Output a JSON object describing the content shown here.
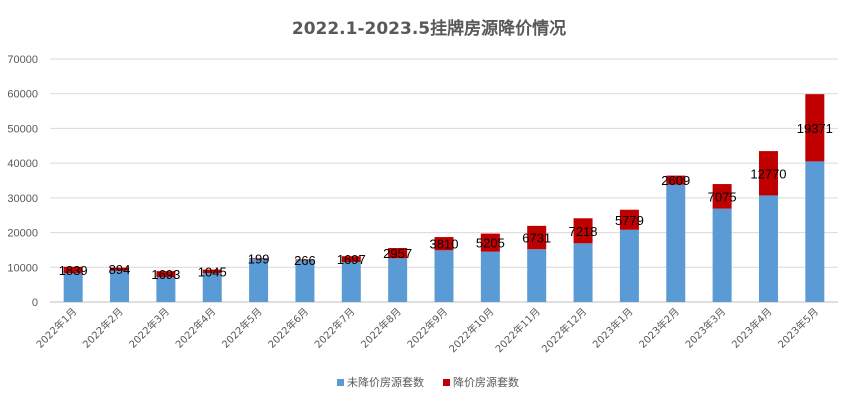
{
  "chart_data": {
    "type": "bar",
    "stacked": true,
    "title": "2022.1-2023.5挂牌房源降价情况",
    "xlabel": "",
    "ylabel": "",
    "ylim": [
      0,
      70000
    ],
    "yticks": [
      0,
      10000,
      20000,
      30000,
      40000,
      50000,
      60000,
      70000
    ],
    "grid": true,
    "legend_position": "bottom",
    "categories": [
      "2022年1月",
      "2022年2月",
      "2022年3月",
      "2022年4月",
      "2022年5月",
      "2022年6月",
      "2022年7月",
      "2022年8月",
      "2022年9月",
      "2022年10月",
      "2022年11月",
      "2022年12月",
      "2023年1月",
      "2023年2月",
      "2023年3月",
      "2023年4月",
      "2023年5月"
    ],
    "series": [
      {
        "name": "未降价房源套数",
        "color": "#5b9bd5",
        "values": [
          8300,
          9000,
          7200,
          8300,
          12400,
          12000,
          11500,
          12600,
          14900,
          14500,
          15200,
          16900,
          20800,
          33800,
          26900,
          30700,
          40500
        ]
      },
      {
        "name": "降价房源套数",
        "color": "#c00000",
        "values": [
          1839,
          894,
          1693,
          1045,
          199,
          266,
          1697,
          2957,
          3810,
          5205,
          6731,
          7218,
          5779,
          2609,
          7075,
          12770,
          19371
        ]
      }
    ],
    "data_labels": [
      "1839",
      "894",
      "1693",
      "1045",
      "199",
      "266",
      "1697",
      "2957",
      "3810",
      "5205",
      "6731",
      "7218",
      "5779",
      "2609",
      "7075",
      "12770",
      "19371"
    ]
  }
}
